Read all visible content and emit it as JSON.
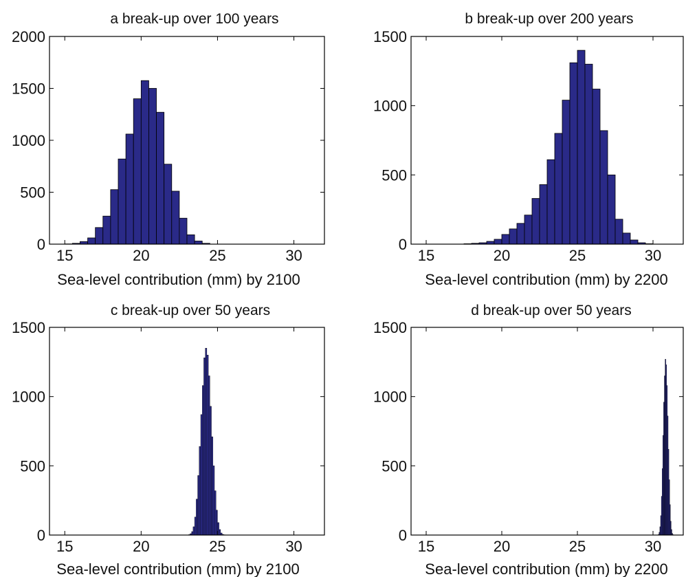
{
  "chart_data": [
    {
      "type": "bar",
      "panel": "a",
      "title": "a  break-up over 100 years",
      "xlabel": "Sea-level contribution (mm) by 2100",
      "ylabel": "",
      "xlim": [
        14,
        32
      ],
      "ylim": [
        0,
        2000
      ],
      "xticks": [
        15,
        20,
        25,
        30
      ],
      "yticks": [
        0,
        500,
        1000,
        1500,
        2000
      ],
      "bin_width": 0.5,
      "bin_centers": [
        15.25,
        15.75,
        16.25,
        16.75,
        17.25,
        17.75,
        18.25,
        18.75,
        19.25,
        19.75,
        20.25,
        20.75,
        21.25,
        21.75,
        22.25,
        22.75,
        23.25,
        23.75,
        24.25
      ],
      "values": [
        2,
        8,
        25,
        60,
        160,
        270,
        525,
        820,
        1060,
        1400,
        1575,
        1500,
        1270,
        770,
        510,
        250,
        90,
        30,
        8
      ],
      "bar_color": "#2a2a88",
      "grid": false
    },
    {
      "type": "bar",
      "panel": "b",
      "title": "b  break-up over 200 years",
      "xlabel": "Sea-level contribution (mm) by 2200",
      "ylabel": "",
      "xlim": [
        14,
        32
      ],
      "ylim": [
        0,
        1500
      ],
      "xticks": [
        15,
        20,
        25,
        30
      ],
      "yticks": [
        0,
        500,
        1000,
        1500
      ],
      "bin_width": 0.5,
      "bin_centers": [
        17.75,
        18.25,
        18.75,
        19.25,
        19.75,
        20.25,
        20.75,
        21.25,
        21.75,
        22.25,
        22.75,
        23.25,
        23.75,
        24.25,
        24.75,
        25.25,
        25.75,
        26.25,
        26.75,
        27.25,
        27.75,
        28.25,
        28.75,
        29.25,
        29.75
      ],
      "values": [
        3,
        6,
        10,
        20,
        35,
        70,
        110,
        150,
        210,
        330,
        430,
        610,
        800,
        1040,
        1310,
        1400,
        1300,
        1120,
        820,
        500,
        180,
        80,
        30,
        10,
        3
      ],
      "bar_color": "#2a2a88",
      "grid": false
    },
    {
      "type": "bar",
      "panel": "c",
      "title": "c  break-up over 50 years",
      "xlabel": "Sea-level contribution (mm) by 2100",
      "ylabel": "",
      "xlim": [
        14,
        32
      ],
      "ylim": [
        0,
        1500
      ],
      "xticks": [
        15,
        20,
        25,
        30
      ],
      "yticks": [
        0,
        500,
        1000,
        1500
      ],
      "bin_width": 0.1,
      "bin_centers": [
        23.15,
        23.25,
        23.35,
        23.45,
        23.55,
        23.65,
        23.75,
        23.85,
        23.95,
        24.05,
        24.15,
        24.25,
        24.35,
        24.45,
        24.55,
        24.65,
        24.75,
        24.85,
        24.95,
        25.05,
        25.15,
        25.25,
        25.35,
        25.45,
        25.55
      ],
      "values": [
        3,
        10,
        25,
        60,
        130,
        260,
        430,
        640,
        870,
        1080,
        1280,
        1350,
        1300,
        1150,
        930,
        710,
        500,
        320,
        180,
        90,
        40,
        15,
        5,
        2,
        1
      ],
      "bar_color": "#2a2a88",
      "grid": false
    },
    {
      "type": "bar",
      "panel": "d",
      "title": "d  break-up over 50 years",
      "xlabel": "Sea-level contribution (mm) by 2200",
      "ylabel": "",
      "xlim": [
        14,
        32
      ],
      "ylim": [
        0,
        1500
      ],
      "xticks": [
        15,
        20,
        25,
        30
      ],
      "yticks": [
        0,
        500,
        1000,
        1500
      ],
      "bin_width": 0.05,
      "bin_centers": [
        30.375,
        30.425,
        30.475,
        30.525,
        30.575,
        30.625,
        30.675,
        30.725,
        30.775,
        30.825,
        30.875,
        30.925,
        30.975,
        31.025,
        31.075,
        31.125,
        31.175,
        31.225,
        31.275,
        31.325
      ],
      "values": [
        5,
        20,
        60,
        140,
        280,
        480,
        720,
        960,
        1150,
        1270,
        1230,
        1080,
        860,
        620,
        400,
        220,
        100,
        40,
        12,
        3
      ],
      "bar_color": "#2a2a88",
      "grid": false
    }
  ]
}
